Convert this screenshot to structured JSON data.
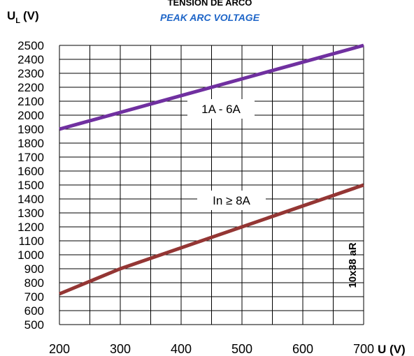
{
  "chart_data": {
    "type": "line",
    "title": "TENSION DE ARCO",
    "subtitle": "PEAK ARC VOLTAGE",
    "ylabel_main": "U",
    "ylabel_sub": "L",
    "ylabel_unit": "(V)",
    "xlabel": "U (V)",
    "x_ticks": [
      "200",
      "300",
      "400",
      "500",
      "600",
      "700"
    ],
    "y_ticks": [
      "500",
      "600",
      "700",
      "800",
      "900",
      "1000",
      "1100",
      "1200",
      "1300",
      "1400",
      "1500",
      "1600",
      "1700",
      "1800",
      "1900",
      "2000",
      "2100",
      "2200",
      "2300",
      "2400",
      "2500"
    ],
    "xlim": [
      200,
      700
    ],
    "ylim": [
      500,
      2500
    ],
    "grid": true,
    "side_label": "10x38 aR",
    "series": [
      {
        "name": "1A - 6A",
        "color": "#7030a0",
        "x": [
          200,
          700
        ],
        "y": [
          1900,
          2500
        ]
      },
      {
        "name": "In ≥ 8A",
        "color": "#943634",
        "x": [
          200,
          300,
          700
        ],
        "y": [
          720,
          900,
          1500
        ]
      }
    ]
  }
}
